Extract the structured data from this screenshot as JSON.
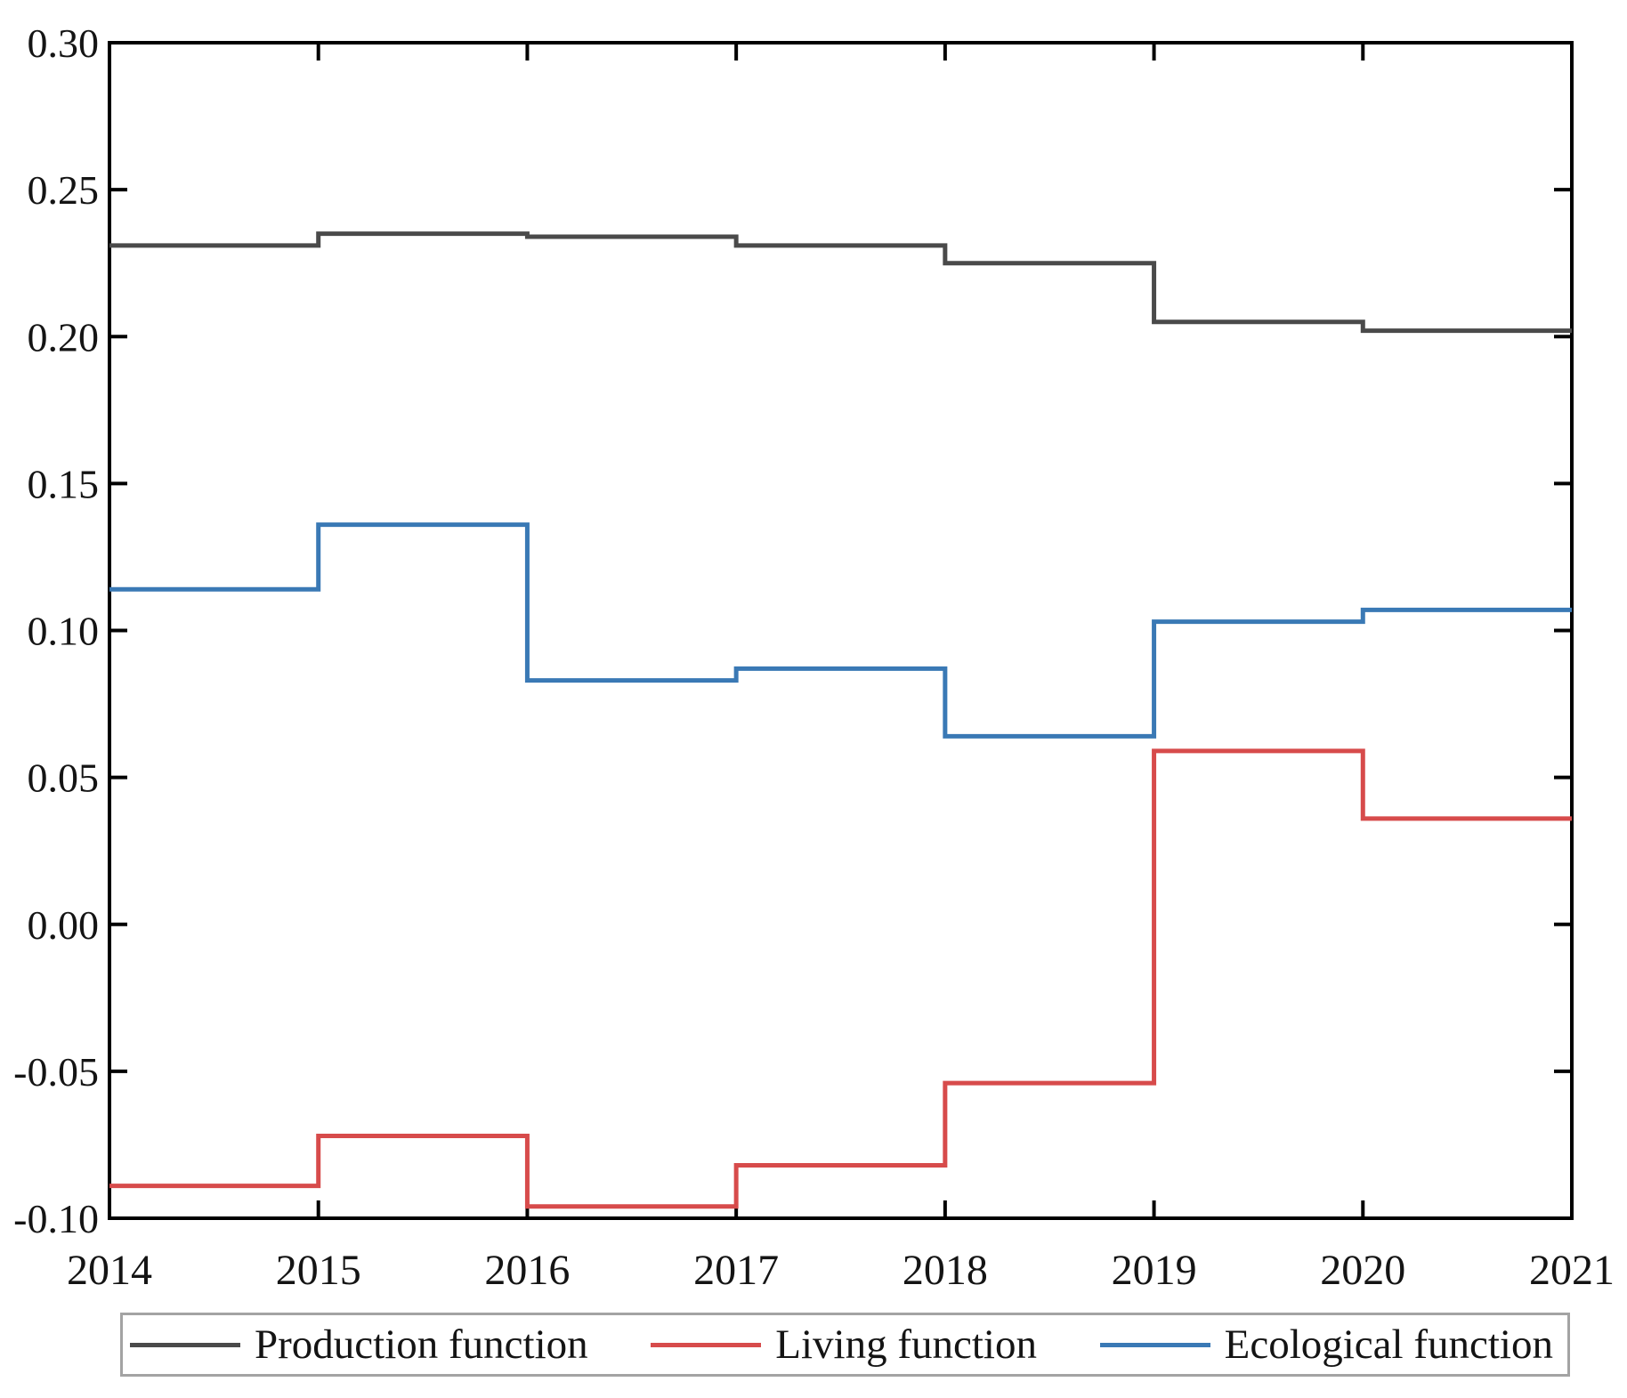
{
  "figure": {
    "background": "#ffffff"
  },
  "chart_data": {
    "type": "line",
    "subtype": "step-post",
    "title": "",
    "xlabel": "",
    "ylabel": "",
    "grid": false,
    "legend_position": "bottom",
    "xlim": [
      2014,
      2021
    ],
    "ylim": [
      -0.1,
      0.3
    ],
    "x_ticks": [
      2014,
      2015,
      2016,
      2017,
      2018,
      2019,
      2020,
      2021
    ],
    "x_tick_labels": [
      "2014",
      "2015",
      "2016",
      "2017",
      "2018",
      "2019",
      "2020",
      "2021"
    ],
    "y_ticks": [
      0.3,
      0.25,
      0.2,
      0.15,
      0.1,
      0.05,
      0.0,
      -0.05,
      -0.1
    ],
    "y_tick_labels": [
      "0.30",
      "0.25",
      "0.20",
      "0.15",
      "0.10",
      "0.05",
      "0.00",
      "-0.05",
      "-0.10"
    ],
    "interval_start_years": [
      2014,
      2015,
      2016,
      2017,
      2018,
      2019,
      2020
    ],
    "series": [
      {
        "name": "Production function",
        "color": "#4a4a4a",
        "values": [
          0.231,
          0.235,
          0.234,
          0.231,
          0.225,
          0.205,
          0.202
        ]
      },
      {
        "name": "Living function",
        "color": "#d74b4b",
        "values": [
          -0.089,
          -0.072,
          -0.096,
          -0.082,
          -0.054,
          0.059,
          0.036
        ]
      },
      {
        "name": "Ecological function",
        "color": "#3a79b5",
        "values": [
          0.114,
          0.136,
          0.083,
          0.087,
          0.064,
          0.103,
          0.107
        ]
      }
    ],
    "axis_color": "#000000",
    "tick_label_color": "#141414"
  }
}
